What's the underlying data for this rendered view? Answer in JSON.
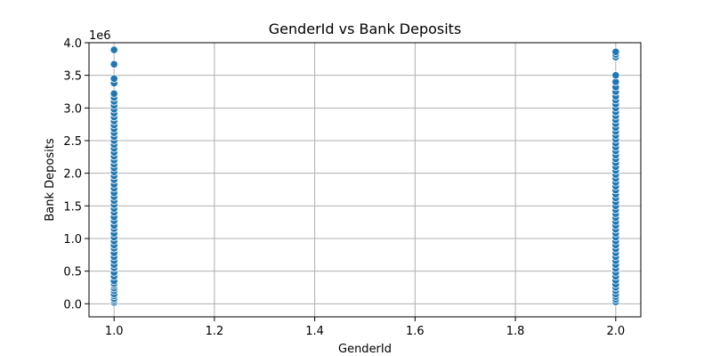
{
  "chart_data": {
    "type": "scatter",
    "title": "GenderId vs Bank Deposits",
    "xlabel": "GenderId",
    "ylabel": "Bank Deposits",
    "y_offset_label": "1e6",
    "xlim": [
      0.95,
      2.05
    ],
    "ylim": [
      -0.2,
      4.0
    ],
    "x_ticks": [
      1.0,
      1.2,
      1.4,
      1.6,
      1.8,
      2.0
    ],
    "x_tick_labels": [
      "1.0",
      "1.2",
      "1.4",
      "1.6",
      "1.8",
      "2.0"
    ],
    "y_ticks": [
      0.0,
      0.5,
      1.0,
      1.5,
      2.0,
      2.5,
      3.0,
      3.5,
      4.0
    ],
    "y_tick_labels": [
      "0.0",
      "0.5",
      "1.0",
      "1.5",
      "2.0",
      "2.5",
      "3.0",
      "3.5",
      "4.0"
    ],
    "y_units": "1e6",
    "grid": true,
    "marker_color": "#1f77b4",
    "series": [
      {
        "points": [
          [
            1,
            0.02
          ],
          [
            1,
            0.05
          ],
          [
            1,
            0.08
          ],
          [
            1,
            0.12
          ],
          [
            1,
            0.15
          ],
          [
            1,
            0.2
          ],
          [
            1,
            0.24
          ],
          [
            1,
            0.28
          ],
          [
            1,
            0.31
          ],
          [
            1,
            0.35
          ],
          [
            1,
            0.42
          ],
          [
            1,
            0.48
          ],
          [
            1,
            0.55
          ],
          [
            1,
            0.6
          ],
          [
            1,
            0.66
          ],
          [
            1,
            0.72
          ],
          [
            1,
            0.78
          ],
          [
            1,
            0.85
          ],
          [
            1,
            0.9
          ],
          [
            1,
            0.96
          ],
          [
            1,
            1.02
          ],
          [
            1,
            1.08
          ],
          [
            1,
            1.15
          ],
          [
            1,
            1.2
          ],
          [
            1,
            1.27
          ],
          [
            1,
            1.33
          ],
          [
            1,
            1.4
          ],
          [
            1,
            1.46
          ],
          [
            1,
            1.52
          ],
          [
            1,
            1.58
          ],
          [
            1,
            1.64
          ],
          [
            1,
            1.7
          ],
          [
            1,
            1.77
          ],
          [
            1,
            1.83
          ],
          [
            1,
            1.9
          ],
          [
            1,
            1.96
          ],
          [
            1,
            2.02
          ],
          [
            1,
            2.08
          ],
          [
            1,
            2.14
          ],
          [
            1,
            2.2
          ],
          [
            1,
            2.26
          ],
          [
            1,
            2.32
          ],
          [
            1,
            2.38
          ],
          [
            1,
            2.44
          ],
          [
            1,
            2.5
          ],
          [
            1,
            2.56
          ],
          [
            1,
            2.62
          ],
          [
            1,
            2.68
          ],
          [
            1,
            2.74
          ],
          [
            1,
            2.8
          ],
          [
            1,
            2.86
          ],
          [
            1,
            2.92
          ],
          [
            1,
            2.98
          ],
          [
            1,
            3.04
          ],
          [
            1,
            3.1
          ],
          [
            1,
            3.16
          ],
          [
            1,
            3.22
          ],
          [
            1,
            3.38
          ],
          [
            1,
            3.45
          ],
          [
            1,
            3.67
          ],
          [
            1,
            3.89
          ],
          [
            2,
            0.03
          ],
          [
            2,
            0.07
          ],
          [
            2,
            0.11
          ],
          [
            2,
            0.15
          ],
          [
            2,
            0.2
          ],
          [
            2,
            0.25
          ],
          [
            2,
            0.3
          ],
          [
            2,
            0.36
          ],
          [
            2,
            0.42
          ],
          [
            2,
            0.48
          ],
          [
            2,
            0.54
          ],
          [
            2,
            0.6
          ],
          [
            2,
            0.66
          ],
          [
            2,
            0.72
          ],
          [
            2,
            0.78
          ],
          [
            2,
            0.84
          ],
          [
            2,
            0.9
          ],
          [
            2,
            0.96
          ],
          [
            2,
            1.02
          ],
          [
            2,
            1.08
          ],
          [
            2,
            1.14
          ],
          [
            2,
            1.2
          ],
          [
            2,
            1.26
          ],
          [
            2,
            1.32
          ],
          [
            2,
            1.38
          ],
          [
            2,
            1.44
          ],
          [
            2,
            1.5
          ],
          [
            2,
            1.56
          ],
          [
            2,
            1.62
          ],
          [
            2,
            1.68
          ],
          [
            2,
            1.74
          ],
          [
            2,
            1.8
          ],
          [
            2,
            1.86
          ],
          [
            2,
            1.92
          ],
          [
            2,
            1.98
          ],
          [
            2,
            2.04
          ],
          [
            2,
            2.1
          ],
          [
            2,
            2.16
          ],
          [
            2,
            2.22
          ],
          [
            2,
            2.28
          ],
          [
            2,
            2.34
          ],
          [
            2,
            2.4
          ],
          [
            2,
            2.46
          ],
          [
            2,
            2.52
          ],
          [
            2,
            2.58
          ],
          [
            2,
            2.64
          ],
          [
            2,
            2.7
          ],
          [
            2,
            2.76
          ],
          [
            2,
            2.82
          ],
          [
            2,
            2.88
          ],
          [
            2,
            2.94
          ],
          [
            2,
            3.0
          ],
          [
            2,
            3.06
          ],
          [
            2,
            3.12
          ],
          [
            2,
            3.18
          ],
          [
            2,
            3.25
          ],
          [
            2,
            3.32
          ],
          [
            2,
            3.4
          ],
          [
            2,
            3.5
          ],
          [
            2,
            3.78
          ],
          [
            2,
            3.82
          ],
          [
            2,
            3.86
          ]
        ]
      }
    ]
  }
}
